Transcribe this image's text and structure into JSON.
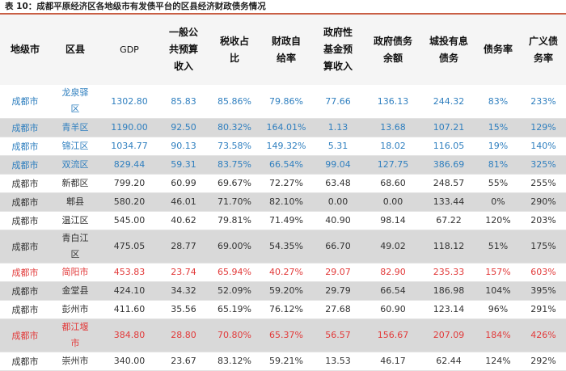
{
  "title": "表 10：成都平原经济区各地级市有发债平台的区县经济财政债务情况",
  "columns": [
    "地级市",
    "区县",
    "GDP",
    "一般公共预算收入",
    "税收占比",
    "财政自给率",
    "政府性基金预算收入",
    "政府债务余额",
    "城投有息债务",
    "债务率",
    "广义债务率"
  ],
  "rows": [
    {
      "cells": [
        "成都市",
        "龙泉驿区",
        "1302.80",
        "85.83",
        "85.86%",
        "79.86%",
        "77.66",
        "136.13",
        "244.32",
        "83%",
        "233%"
      ],
      "style": "blue",
      "tall": true,
      "shade": false
    },
    {
      "cells": [
        "成都市",
        "青羊区",
        "1190.00",
        "92.50",
        "80.32%",
        "164.01%",
        "1.13",
        "13.68",
        "107.21",
        "15%",
        "129%"
      ],
      "style": "blue",
      "tall": false,
      "shade": true
    },
    {
      "cells": [
        "成都市",
        "锦江区",
        "1034.77",
        "90.13",
        "73.58%",
        "149.32%",
        "5.31",
        "18.02",
        "116.05",
        "19%",
        "140%"
      ],
      "style": "blue",
      "tall": false,
      "shade": false
    },
    {
      "cells": [
        "成都市",
        "双流区",
        "829.44",
        "59.31",
        "83.75%",
        "66.54%",
        "99.04",
        "127.75",
        "386.69",
        "81%",
        "325%"
      ],
      "style": "blue",
      "tall": false,
      "shade": true
    },
    {
      "cells": [
        "成都市",
        "新都区",
        "799.20",
        "60.99",
        "69.67%",
        "72.27%",
        "63.48",
        "68.60",
        "248.57",
        "55%",
        "255%"
      ],
      "style": "normal",
      "tall": false,
      "shade": false
    },
    {
      "cells": [
        "成都市",
        "郫县",
        "580.20",
        "46.01",
        "71.70%",
        "82.10%",
        "0.00",
        "0.00",
        "133.44",
        "0%",
        "290%"
      ],
      "style": "normal",
      "tall": false,
      "shade": true
    },
    {
      "cells": [
        "成都市",
        "温江区",
        "545.00",
        "40.62",
        "79.81%",
        "71.49%",
        "40.90",
        "98.14",
        "67.22",
        "120%",
        "203%"
      ],
      "style": "normal",
      "tall": false,
      "shade": false
    },
    {
      "cells": [
        "成都市",
        "青白江区",
        "475.05",
        "28.77",
        "69.00%",
        "54.35%",
        "66.70",
        "49.02",
        "118.12",
        "51%",
        "175%"
      ],
      "style": "normal",
      "tall": true,
      "shade": true
    },
    {
      "cells": [
        "成都市",
        "简阳市",
        "453.83",
        "23.74",
        "65.94%",
        "40.27%",
        "29.07",
        "82.90",
        "235.33",
        "157%",
        "603%"
      ],
      "style": "red",
      "tall": false,
      "shade": false
    },
    {
      "cells": [
        "成都市",
        "金堂县",
        "424.10",
        "34.32",
        "52.09%",
        "59.20%",
        "29.79",
        "66.54",
        "186.98",
        "104%",
        "395%"
      ],
      "style": "normal",
      "tall": false,
      "shade": true
    },
    {
      "cells": [
        "成都市",
        "彭州市",
        "411.60",
        "35.56",
        "65.19%",
        "76.12%",
        "27.68",
        "60.90",
        "123.14",
        "96%",
        "291%"
      ],
      "style": "normal",
      "tall": false,
      "shade": false
    },
    {
      "cells": [
        "成都市",
        "都江堰市",
        "384.80",
        "28.80",
        "70.80%",
        "65.37%",
        "56.57",
        "156.67",
        "207.09",
        "184%",
        "426%"
      ],
      "style": "red",
      "tall": true,
      "shade": true
    },
    {
      "cells": [
        "成都市",
        "崇州市",
        "340.00",
        "23.67",
        "83.12%",
        "59.21%",
        "13.53",
        "46.17",
        "62.44",
        "124%",
        "292%"
      ],
      "style": "normal",
      "tall": false,
      "shade": false
    }
  ]
}
